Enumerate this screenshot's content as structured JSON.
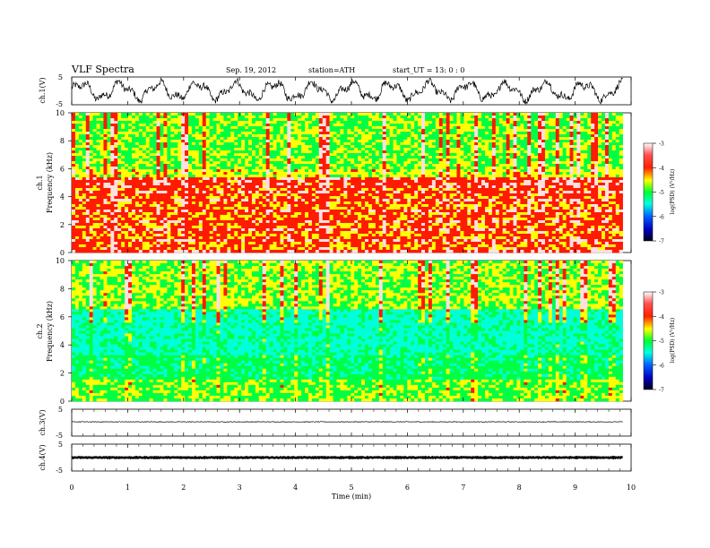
{
  "header": {
    "title": "VLF  Spectra",
    "date": "Sep. 19, 2012",
    "station": "station=ATH",
    "start": "start_UT  =    13: 0  : 0"
  },
  "chart_data": [
    {
      "type": "line",
      "panel": "ch1-waveform",
      "ylabel": "ch.1(V)",
      "ylim": [
        -5,
        5
      ],
      "yticks": [
        "5",
        "-5"
      ],
      "xlim": [
        0,
        10
      ],
      "description": "noisy waveform roughly between -4 and 4 V"
    },
    {
      "type": "heatmap",
      "panel": "ch1-spectrogram",
      "ylabel": "ch.1\nFrequency (kHz)",
      "ylabel_lines": [
        "ch.1",
        "Frequency (kHz)"
      ],
      "ylim": [
        0,
        10
      ],
      "yticks": [
        "0",
        "2",
        "4",
        "6",
        "8",
        "10"
      ],
      "xlim": [
        0,
        9.85
      ],
      "colorbar": {
        "label": "log(PSD) (V²/Hz)",
        "range": [
          -7,
          -3
        ],
        "ticks": [
          "-3",
          "-4",
          "-5",
          "-6",
          "-7"
        ]
      }
    },
    {
      "type": "heatmap",
      "panel": "ch2-spectrogram",
      "ylabel_lines": [
        "ch.2",
        "Frequency (kHz)"
      ],
      "ylim": [
        0,
        10
      ],
      "yticks": [
        "0",
        "2",
        "4",
        "6",
        "8",
        "10"
      ],
      "xlim": [
        0,
        9.85
      ],
      "colorbar": {
        "label": "log(PSD) (V²/Hz)",
        "range": [
          -7,
          -3
        ],
        "ticks": [
          "-3",
          "-4",
          "-5",
          "-6",
          "-7"
        ]
      }
    },
    {
      "type": "line",
      "panel": "ch3-waveform",
      "ylabel": "ch.3(V)",
      "ylim": [
        -5,
        5
      ],
      "yticks": [
        "5",
        "-5"
      ],
      "level": 0.3
    },
    {
      "type": "line",
      "panel": "ch4-waveform",
      "ylabel": "ch.4(V)",
      "ylim": [
        -5,
        5
      ],
      "yticks": [
        "5",
        "-5"
      ],
      "level": 0
    }
  ],
  "xaxis": {
    "label": "Time  (min)",
    "ticks": [
      "0",
      "1",
      "2",
      "3",
      "4",
      "5",
      "6",
      "7",
      "8",
      "9",
      "10"
    ],
    "xlim": [
      0,
      10
    ]
  },
  "colors": {
    "spectrum_low": "#00007a",
    "spectrum_blue": "#0064ff",
    "spectrum_cyan": "#00ffd8",
    "spectrum_green": "#00ff44",
    "spectrum_yellow": "#ffff00",
    "spectrum_red": "#ff1a00",
    "spectrum_high": "#ffe0e0"
  }
}
